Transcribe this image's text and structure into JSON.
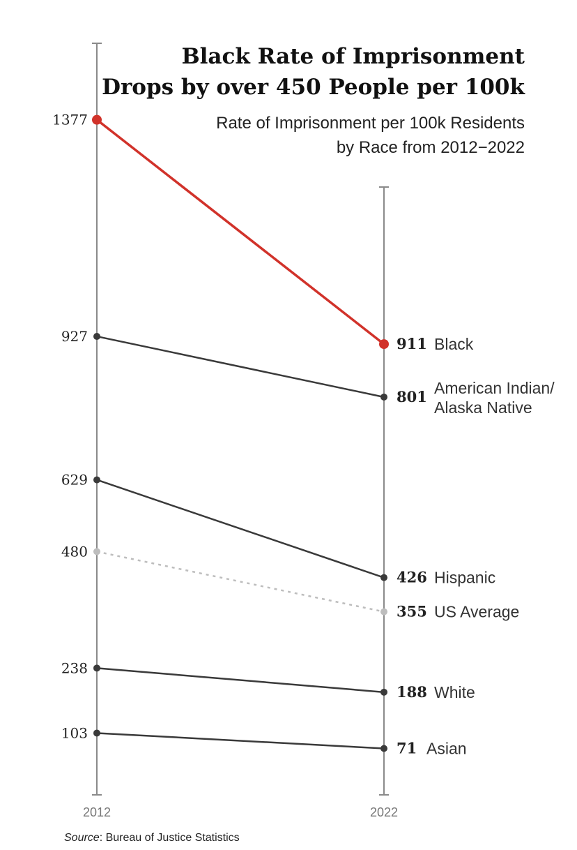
{
  "chart_data": {
    "type": "line",
    "title": [
      "Black Rate of Imprisonment",
      "Drops by over 450 People per 100k"
    ],
    "subtitle": [
      "Rate of Imprisonment per 100k Residents",
      "by Race from 2012−2022"
    ],
    "x": [
      "2012",
      "2022"
    ],
    "series": [
      {
        "name": "Black",
        "label_lines": [
          "Black"
        ],
        "values": [
          1377,
          911
        ],
        "color": "#d1322a",
        "style": "solid",
        "highlight": true
      },
      {
        "name": "American Indian/ Alaska Native",
        "label_lines": [
          "American Indian/",
          "Alaska Native"
        ],
        "values": [
          927,
          801
        ],
        "color": "#3a3a3a",
        "style": "solid"
      },
      {
        "name": "Hispanic",
        "label_lines": [
          "Hispanic"
        ],
        "values": [
          629,
          426
        ],
        "color": "#3a3a3a",
        "style": "solid"
      },
      {
        "name": "US Average",
        "label_lines": [
          "US Average"
        ],
        "values": [
          480,
          355
        ],
        "color": "#bdbdbd",
        "style": "dotted"
      },
      {
        "name": "White",
        "label_lines": [
          "White"
        ],
        "values": [
          238,
          188
        ],
        "color": "#3a3a3a",
        "style": "solid"
      },
      {
        "name": "Asian",
        "label_lines": [
          "Asian"
        ],
        "values": [
          103,
          71
        ],
        "color": "#3a3a3a",
        "style": "solid"
      }
    ],
    "axis_color": "#8a8a8a",
    "source_prefix": "Source",
    "source_text": ": Bureau of Justice Statistics"
  }
}
